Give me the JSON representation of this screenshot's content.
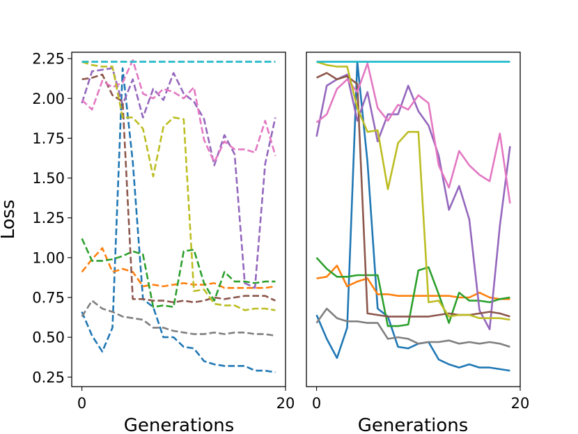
{
  "chart_data": [
    {
      "type": "line",
      "line_style": "dashed",
      "xlabel": "Generations",
      "ylabel": "Loss",
      "xlim": [
        -1,
        20
      ],
      "ylim": [
        0.19,
        2.29
      ],
      "xticks": [
        0,
        20
      ],
      "yticks": [
        0.25,
        0.5,
        0.75,
        1.0,
        1.25,
        1.5,
        1.75,
        2.0,
        2.25
      ],
      "ytick_labels": [
        "0.25",
        "0.50",
        "0.75",
        "1.00",
        "1.25",
        "1.50",
        "1.75",
        "2.00",
        "2.25"
      ],
      "x": [
        0,
        1,
        2,
        3,
        4,
        5,
        6,
        7,
        8,
        9,
        10,
        11,
        12,
        13,
        14,
        15,
        16,
        17,
        18,
        19
      ],
      "series": [
        {
          "name": "blue",
          "color": "#1f77b4",
          "values": [
            0.66,
            0.51,
            0.41,
            0.56,
            2.19,
            1.6,
            0.74,
            0.69,
            0.5,
            0.5,
            0.44,
            0.43,
            0.35,
            0.33,
            0.32,
            0.32,
            0.32,
            0.29,
            0.29,
            0.28
          ]
        },
        {
          "name": "orange",
          "color": "#ff7f0e",
          "values": [
            0.91,
            0.99,
            1.06,
            0.91,
            0.93,
            0.91,
            0.82,
            0.83,
            0.82,
            0.83,
            0.84,
            0.83,
            0.83,
            0.84,
            0.81,
            0.81,
            0.81,
            0.81,
            0.81,
            0.82
          ]
        },
        {
          "name": "green",
          "color": "#2ca02c",
          "values": [
            1.12,
            0.98,
            0.98,
            0.99,
            1.01,
            1.04,
            1.02,
            0.69,
            0.7,
            0.69,
            1.04,
            1.05,
            0.84,
            0.73,
            0.91,
            0.85,
            0.85,
            0.84,
            0.85,
            0.85
          ]
        },
        {
          "name": "red",
          "color": "#d62728",
          "values": [
            2.23,
            2.23,
            2.23,
            2.23,
            2.23,
            2.23,
            2.23,
            2.23,
            2.23,
            2.23,
            2.23,
            2.23,
            2.23,
            2.23,
            2.23,
            2.23,
            2.23,
            2.23,
            2.23,
            2.23
          ]
        },
        {
          "name": "purple",
          "color": "#9467bd",
          "values": [
            1.97,
            2.17,
            2.18,
            2.19,
            1.96,
            2.12,
            1.88,
            2.06,
            1.99,
            2.16,
            2.03,
            1.98,
            1.87,
            1.58,
            1.77,
            1.65,
            0.84,
            0.81,
            1.59,
            1.88
          ]
        },
        {
          "name": "brown",
          "color": "#8c564b",
          "values": [
            2.12,
            2.13,
            2.15,
            2.02,
            1.98,
            0.74,
            0.74,
            0.73,
            0.73,
            0.72,
            0.73,
            0.72,
            0.73,
            0.75,
            0.74,
            0.75,
            0.76,
            0.76,
            0.76,
            0.73
          ]
        },
        {
          "name": "pink",
          "color": "#e377c2",
          "values": [
            1.99,
            1.93,
            2.11,
            2.07,
            2.1,
            2.24,
            2.03,
            2.0,
            2.06,
            2.04,
            2.0,
            2.07,
            1.74,
            1.6,
            1.73,
            1.68,
            1.68,
            1.66,
            1.86,
            1.64
          ]
        },
        {
          "name": "gray",
          "color": "#7f7f7f",
          "values": [
            0.63,
            0.73,
            0.68,
            0.66,
            0.63,
            0.62,
            0.61,
            0.56,
            0.56,
            0.54,
            0.53,
            0.52,
            0.52,
            0.53,
            0.52,
            0.53,
            0.53,
            0.52,
            0.52,
            0.51
          ]
        },
        {
          "name": "olive",
          "color": "#bcbd22",
          "values": [
            2.23,
            2.21,
            2.2,
            2.2,
            1.88,
            1.88,
            1.81,
            1.51,
            1.82,
            1.88,
            1.87,
            0.79,
            0.8,
            0.71,
            0.7,
            0.7,
            0.67,
            0.68,
            0.68,
            0.67
          ]
        },
        {
          "name": "cyan",
          "color": "#17becf",
          "values": [
            2.23,
            2.23,
            2.23,
            2.23,
            2.23,
            2.23,
            2.23,
            2.23,
            2.23,
            2.23,
            2.23,
            2.23,
            2.23,
            2.23,
            2.23,
            2.23,
            2.23,
            2.23,
            2.23,
            2.23
          ]
        }
      ]
    },
    {
      "type": "line",
      "line_style": "solid",
      "xlabel": "Generations",
      "ylabel": "",
      "xlim": [
        -1,
        20
      ],
      "ylim": [
        0.19,
        2.29
      ],
      "xticks": [
        0,
        20
      ],
      "x": [
        0,
        1,
        2,
        3,
        4,
        5,
        6,
        7,
        8,
        9,
        10,
        11,
        12,
        13,
        14,
        15,
        16,
        17,
        18,
        19
      ],
      "series": [
        {
          "name": "blue",
          "color": "#1f77b4",
          "values": [
            0.64,
            0.49,
            0.37,
            0.56,
            2.23,
            1.6,
            0.68,
            0.63,
            0.44,
            0.43,
            0.46,
            0.47,
            0.36,
            0.33,
            0.31,
            0.33,
            0.31,
            0.31,
            0.3,
            0.29
          ]
        },
        {
          "name": "orange",
          "color": "#ff7f0e",
          "values": [
            0.87,
            0.88,
            0.95,
            0.82,
            0.85,
            0.87,
            0.77,
            0.77,
            0.76,
            0.76,
            0.76,
            0.76,
            0.76,
            0.76,
            0.75,
            0.75,
            0.78,
            0.75,
            0.74,
            0.74
          ]
        },
        {
          "name": "green",
          "color": "#2ca02c",
          "values": [
            1.0,
            0.93,
            0.88,
            0.88,
            0.89,
            0.89,
            0.89,
            0.57,
            0.57,
            0.58,
            0.92,
            0.94,
            0.77,
            0.59,
            0.78,
            0.73,
            0.73,
            0.72,
            0.74,
            0.75
          ]
        },
        {
          "name": "red",
          "color": "#d62728",
          "values": [
            2.23,
            2.23,
            2.23,
            2.23,
            2.23,
            2.23,
            2.23,
            2.23,
            2.23,
            2.23,
            2.23,
            2.23,
            2.23,
            2.23,
            2.23,
            2.23,
            2.23,
            2.23,
            2.23,
            2.23
          ]
        },
        {
          "name": "purple",
          "color": "#9467bd",
          "values": [
            1.76,
            2.08,
            2.12,
            2.15,
            1.86,
            2.04,
            1.73,
            1.9,
            1.9,
            2.08,
            1.92,
            1.83,
            1.64,
            1.3,
            1.45,
            1.24,
            0.67,
            0.55,
            1.2,
            1.7
          ]
        },
        {
          "name": "brown",
          "color": "#8c564b",
          "values": [
            2.13,
            2.16,
            2.12,
            2.14,
            2.09,
            0.65,
            0.64,
            0.63,
            0.63,
            0.63,
            0.63,
            0.63,
            0.64,
            0.65,
            0.64,
            0.64,
            0.65,
            0.66,
            0.65,
            0.63
          ]
        },
        {
          "name": "pink",
          "color": "#e377c2",
          "values": [
            1.85,
            1.9,
            2.06,
            2.12,
            2.04,
            2.22,
            1.94,
            1.86,
            1.96,
            1.93,
            2.02,
            1.97,
            1.58,
            1.44,
            1.67,
            1.58,
            1.52,
            1.48,
            1.78,
            1.34
          ]
        },
        {
          "name": "gray",
          "color": "#7f7f7f",
          "values": [
            0.59,
            0.68,
            0.62,
            0.6,
            0.6,
            0.59,
            0.59,
            0.49,
            0.5,
            0.49,
            0.46,
            0.47,
            0.47,
            0.48,
            0.46,
            0.47,
            0.46,
            0.47,
            0.46,
            0.44
          ]
        },
        {
          "name": "olive",
          "color": "#bcbd22",
          "values": [
            2.23,
            2.21,
            2.2,
            2.2,
            1.94,
            1.79,
            1.8,
            1.43,
            1.72,
            1.79,
            1.79,
            0.72,
            0.73,
            0.63,
            0.64,
            0.64,
            0.62,
            0.62,
            0.62,
            0.61
          ]
        },
        {
          "name": "cyan",
          "color": "#17becf",
          "values": [
            2.23,
            2.23,
            2.23,
            2.23,
            2.23,
            2.23,
            2.23,
            2.23,
            2.23,
            2.23,
            2.23,
            2.23,
            2.23,
            2.23,
            2.23,
            2.23,
            2.23,
            2.23,
            2.23,
            2.23
          ]
        }
      ]
    }
  ]
}
